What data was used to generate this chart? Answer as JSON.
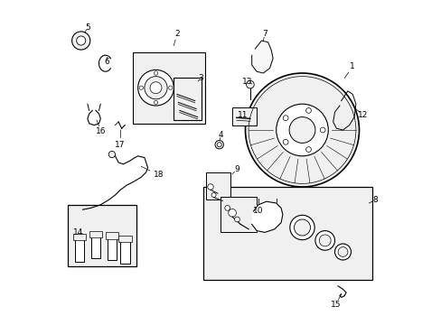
{
  "bg_color": "#ffffff",
  "line_color": "#000000",
  "gray_fill": "#e8e8e8",
  "light_gray": "#f0f0f0",
  "fig_width": 4.89,
  "fig_height": 3.6,
  "dpi": 100
}
